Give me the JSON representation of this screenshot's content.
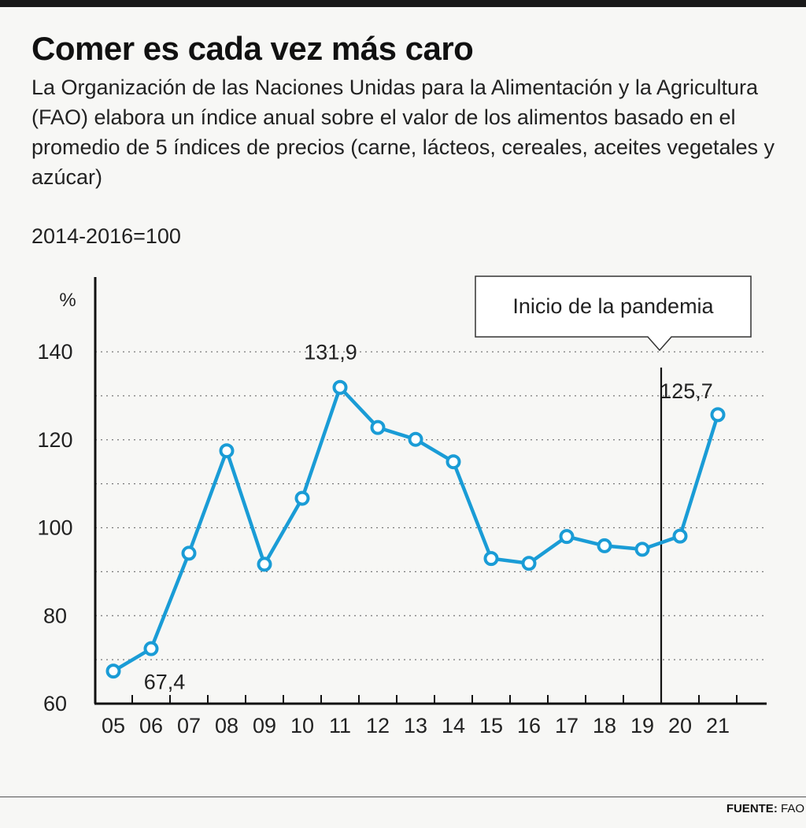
{
  "title": "Comer es cada vez más caro",
  "subtitle": "La Organización de las Naciones Unidas para la Alimentación y la Agricultura (FAO) elabora un índice anual sobre el valor de los alimentos basado en el promedio de 5 índices de precios (carne, lácteos, cereales, aceites vegetales y azúcar)",
  "base_note": "2014-2016=100",
  "source": {
    "label": "FUENTE:",
    "value": "FAO"
  },
  "chart_data": {
    "type": "line",
    "ylabel": "%",
    "ylim": [
      60,
      140
    ],
    "yticks": [
      "60",
      "80",
      "100",
      "120",
      "140"
    ],
    "x": [
      "05",
      "06",
      "07",
      "08",
      "09",
      "10",
      "11",
      "12",
      "13",
      "14",
      "15",
      "16",
      "17",
      "18",
      "19",
      "20",
      "21"
    ],
    "series": [
      {
        "values": [
          67.4,
          72.5,
          94.2,
          117.5,
          91.7,
          106.7,
          131.9,
          122.8,
          120.1,
          115.0,
          93.0,
          91.9,
          98.0,
          95.9,
          95.1,
          98.1,
          125.7
        ]
      }
    ],
    "labels": [
      {
        "index": 0,
        "text": "67,4"
      },
      {
        "index": 6,
        "text": "131,9"
      },
      {
        "index": 16,
        "text": "125,7"
      }
    ],
    "annotation": {
      "text": "Inicio de la pandemia",
      "between": [
        "19",
        "20"
      ]
    },
    "grid": "dotted horizontal",
    "line_color": "#1a9cd6"
  }
}
